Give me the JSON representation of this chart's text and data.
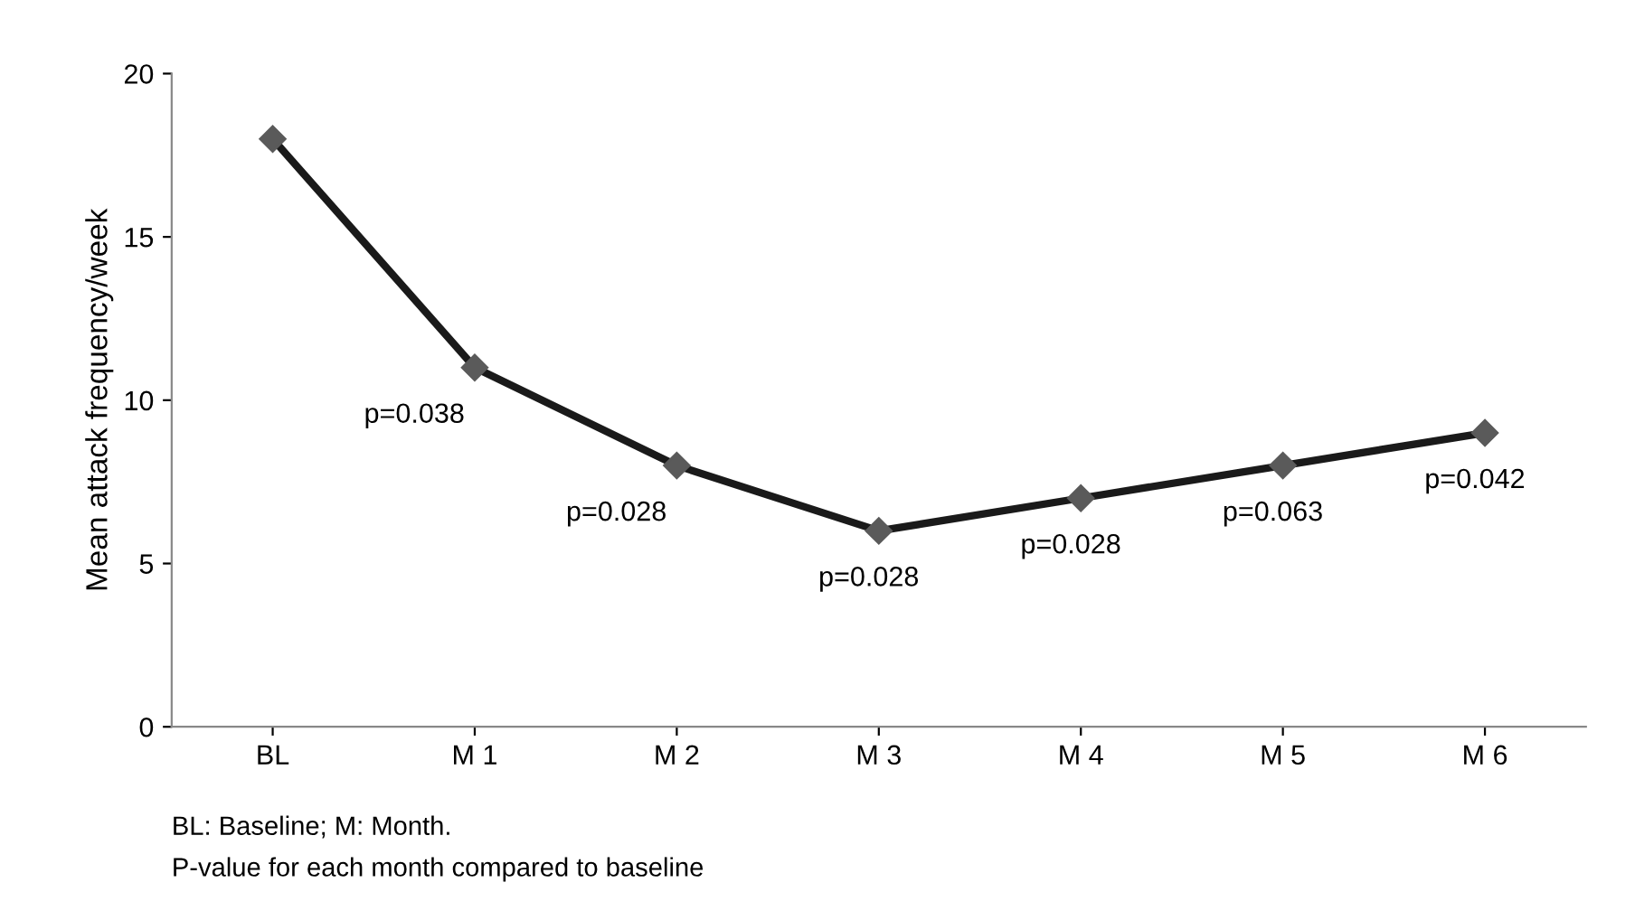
{
  "chart_data": {
    "type": "line",
    "ylabel": "Mean attack frequency/week",
    "categories": [
      "BL",
      "M 1",
      "M 2",
      "M 3",
      "M 4",
      "M 5",
      "M 6"
    ],
    "series": [
      {
        "color": "#1a1a1a",
        "values": [
          18,
          11,
          8,
          6,
          7,
          8,
          9
        ]
      }
    ],
    "marker": "diamond",
    "line_style": "solid",
    "grid": false,
    "legend": false,
    "ylim": [
      0,
      20
    ],
    "yticks": [
      0,
      5,
      10,
      15,
      20
    ],
    "annotations": [
      {
        "text": "p=0.038",
        "x": "M 1",
        "y": 11
      },
      {
        "text": "p=0.028",
        "x": "M 2",
        "y": 8
      },
      {
        "text": "p=0.028",
        "x": "M 3",
        "y": 6
      },
      {
        "text": "p=0.028",
        "x": "M 4",
        "y": 7
      },
      {
        "text": "p=0.063",
        "x": "M 5",
        "y": 8
      },
      {
        "text": "p=0.042",
        "x": "M 6",
        "y": 9
      },
      "BL: Baseline; M: Month.",
      "P-value for each month compared to baseline"
    ]
  }
}
